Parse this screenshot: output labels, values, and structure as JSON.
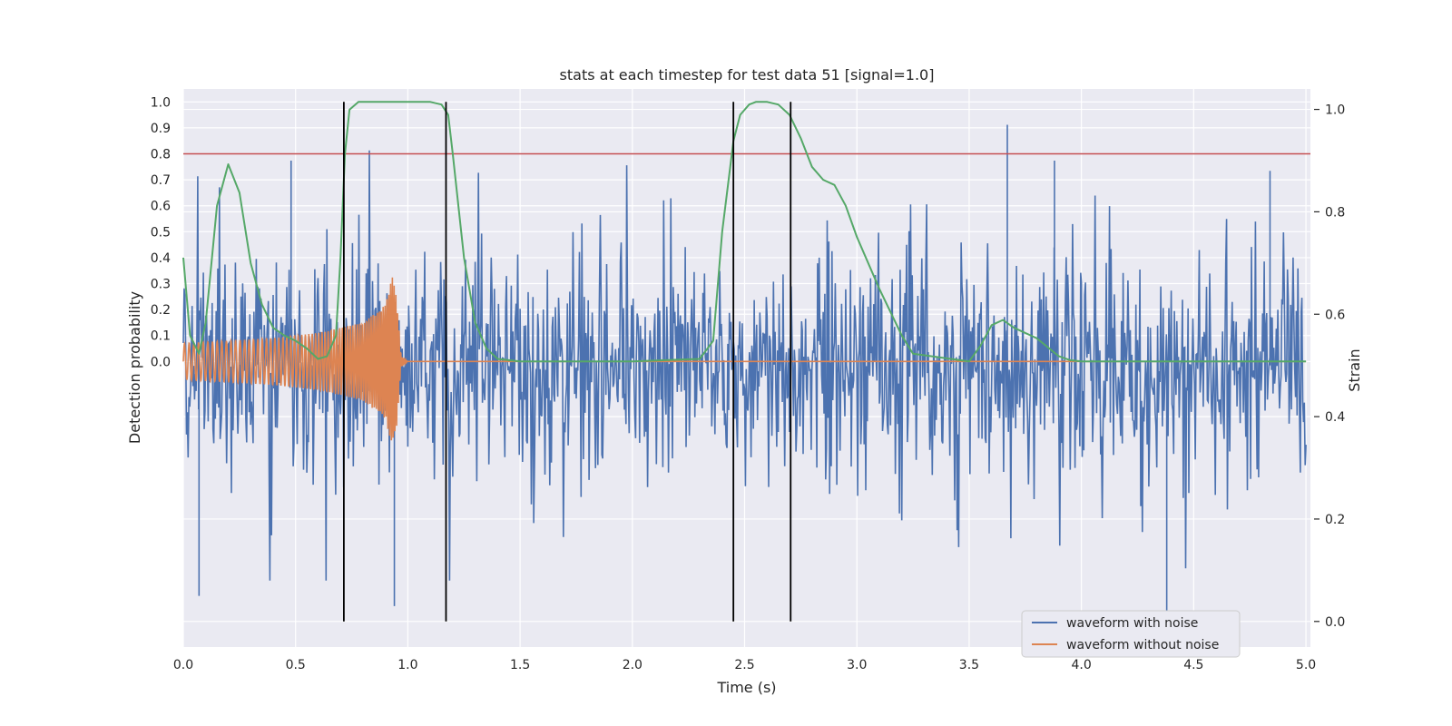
{
  "chart_data": {
    "type": "line",
    "title": "stats at each timestep for test data 51 [signal=1.0]",
    "xlabel": "Time (s)",
    "ylabel_left": "Detection probability",
    "ylabel_right": "Strain",
    "xlim": [
      0.0,
      5.02
    ],
    "ylim_left": [
      -1.1,
      1.05
    ],
    "ylim_right": [
      -0.05,
      1.04
    ],
    "x_ticks": [
      "0.0",
      "0.5",
      "1.0",
      "1.5",
      "2.0",
      "2.5",
      "3.0",
      "3.5",
      "4.0",
      "4.5",
      "5.0"
    ],
    "x_tick_values": [
      0.0,
      0.5,
      1.0,
      1.5,
      2.0,
      2.5,
      3.0,
      3.5,
      4.0,
      4.5,
      5.0
    ],
    "left_ticks": [
      "0.0",
      "0.1",
      "0.2",
      "0.3",
      "0.4",
      "0.5",
      "0.6",
      "0.7",
      "0.8",
      "0.9",
      "1.0"
    ],
    "left_tick_values": [
      0.0,
      0.1,
      0.2,
      0.3,
      0.4,
      0.5,
      0.6,
      0.7,
      0.8,
      0.9,
      1.0
    ],
    "right_ticks": [
      "0.0",
      "0.2",
      "0.4",
      "0.6",
      "0.8",
      "1.0"
    ],
    "right_tick_values": [
      0.0,
      0.2,
      0.4,
      0.6,
      0.8,
      1.0
    ],
    "grid": true,
    "legend_position": "lower-right",
    "threshold": {
      "value": 0.8,
      "color": "#c44e52"
    },
    "vertical_lines": [
      0.715,
      1.17,
      2.45,
      2.705
    ],
    "series": [
      {
        "name": "waveform with noise",
        "color": "#4c72b0",
        "axis": "right",
        "kind": "noise",
        "x_range": [
          0.0,
          5.0
        ],
        "center": 0.5,
        "spread": 0.1,
        "samples": 1400,
        "spikes": [
          {
            "x": 0.07,
            "y": 0.05
          },
          {
            "x": 0.48,
            "y": 0.9
          },
          {
            "x": 0.94,
            "y": 0.03
          },
          {
            "x": 3.67,
            "y": 0.97
          },
          {
            "x": 3.88,
            "y": 0.9
          },
          {
            "x": 4.38,
            "y": -0.02
          },
          {
            "x": 4.84,
            "y": 0.88
          }
        ]
      },
      {
        "name": "waveform without noise",
        "color": "#dd8452",
        "axis": "left",
        "kind": "chirp",
        "x": [
          0.0,
          0.2,
          0.4,
          0.6,
          0.8,
          0.9,
          0.93,
          0.95,
          0.97,
          1.0,
          5.0
        ],
        "envelope": [
          0.07,
          0.08,
          0.09,
          0.11,
          0.15,
          0.22,
          0.33,
          0.25,
          0.02,
          0.0,
          0.0
        ]
      },
      {
        "name": "",
        "color": "#55a868",
        "axis": "left",
        "kind": "line",
        "x": [
          0.0,
          0.03,
          0.07,
          0.1,
          0.15,
          0.2,
          0.25,
          0.3,
          0.35,
          0.4,
          0.45,
          0.5,
          0.55,
          0.6,
          0.64,
          0.68,
          0.7,
          0.72,
          0.74,
          0.78,
          0.85,
          1.0,
          1.1,
          1.15,
          1.18,
          1.2,
          1.25,
          1.3,
          1.35,
          1.4,
          1.5,
          2.0,
          2.3,
          2.36,
          2.4,
          2.45,
          2.48,
          2.52,
          2.55,
          2.6,
          2.65,
          2.7,
          2.75,
          2.8,
          2.85,
          2.9,
          2.95,
          3.0,
          3.1,
          3.2,
          3.25,
          3.5,
          3.55,
          3.6,
          3.65,
          3.7,
          3.8,
          3.9,
          3.95,
          4.0,
          5.0
        ],
        "y": [
          0.4,
          0.1,
          0.03,
          0.15,
          0.6,
          0.76,
          0.65,
          0.38,
          0.22,
          0.13,
          0.1,
          0.08,
          0.05,
          0.01,
          0.02,
          0.1,
          0.4,
          0.8,
          0.97,
          1.0,
          1.0,
          1.0,
          1.0,
          0.99,
          0.95,
          0.8,
          0.4,
          0.15,
          0.05,
          0.01,
          0.0,
          0.0,
          0.01,
          0.08,
          0.5,
          0.85,
          0.95,
          0.99,
          1.0,
          1.0,
          0.99,
          0.95,
          0.86,
          0.75,
          0.7,
          0.68,
          0.6,
          0.48,
          0.28,
          0.1,
          0.03,
          0.0,
          0.06,
          0.14,
          0.16,
          0.13,
          0.09,
          0.02,
          0.005,
          0.0,
          0.0
        ]
      }
    ]
  }
}
